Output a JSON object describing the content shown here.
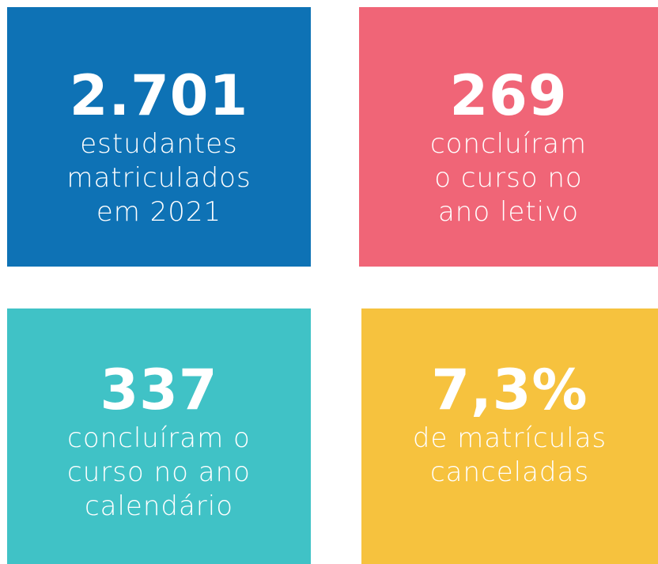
{
  "cards": [
    {
      "value": "2.701",
      "lines": [
        "estudantes",
        "matriculados",
        "em 2021"
      ],
      "color": "#0e72b5"
    },
    {
      "value": "269",
      "lines": [
        "concluíram",
        "o curso no",
        "ano letivo"
      ],
      "color": "#f06577"
    },
    {
      "value": "337",
      "lines": [
        "concluíram o",
        "curso no ano",
        "calendário"
      ],
      "color": "#40c2c6"
    },
    {
      "value": "7,3%",
      "lines": [
        "de matrículas",
        "canceladas"
      ],
      "color": "#f6c23e"
    }
  ]
}
